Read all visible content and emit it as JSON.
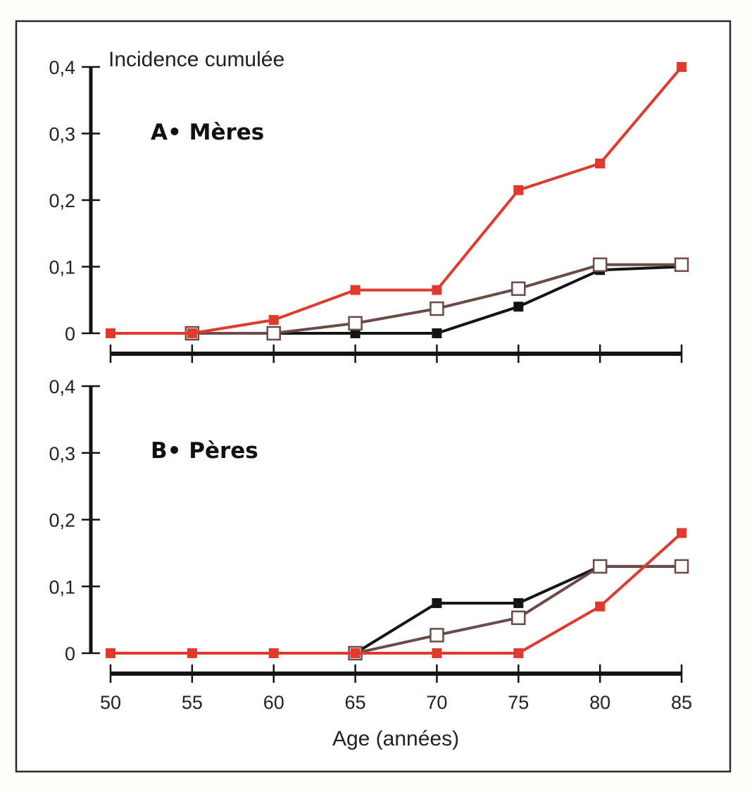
{
  "colors": {
    "series_mothers_red": "#e03a2c",
    "series_black": "#141414",
    "series_open": "#6b4a48",
    "axis": "#141414"
  },
  "chart_data": [
    {
      "type": "line",
      "panel": "A",
      "title": "A•  Mères",
      "ylabel": "Incidence cumulée",
      "xlabel": "",
      "x": [
        50,
        55,
        60,
        65,
        70,
        75,
        80,
        85
      ],
      "xlim": [
        50,
        85
      ],
      "ylim": [
        0,
        0.4
      ],
      "yticks": [
        0,
        0.1,
        0.2,
        0.3,
        0.4
      ],
      "ytick_labels": [
        "0",
        "0,1",
        "0,2",
        "0,3",
        "0,4"
      ],
      "grid": false,
      "legend": "none",
      "series": [
        {
          "name": "black-filled",
          "marker": "filled-square",
          "color": "#141414",
          "values": [
            null,
            0,
            0,
            0,
            0,
            0.04,
            0.095,
            0.1
          ]
        },
        {
          "name": "open",
          "marker": "open-square",
          "color": "#6b4a48",
          "values": [
            null,
            0,
            0,
            0.015,
            0.037,
            0.067,
            0.103,
            0.103
          ]
        },
        {
          "name": "red-filled",
          "marker": "filled-square",
          "color": "#e03a2c",
          "values": [
            0,
            0,
            0.02,
            0.065,
            0.065,
            0.215,
            0.255,
            0.4
          ]
        }
      ]
    },
    {
      "type": "line",
      "panel": "B",
      "title": "B•  Pères",
      "ylabel": "",
      "xlabel": "Age (années)",
      "x": [
        50,
        55,
        60,
        65,
        70,
        75,
        80,
        85
      ],
      "xtick_labels": [
        "50",
        "55",
        "60",
        "65",
        "70",
        "75",
        "80",
        "85"
      ],
      "xlim": [
        50,
        85
      ],
      "ylim": [
        0,
        0.4
      ],
      "yticks": [
        0,
        0.1,
        0.2,
        0.3,
        0.4
      ],
      "ytick_labels": [
        "0",
        "0,1",
        "0,2",
        "0,3",
        "0,4"
      ],
      "grid": false,
      "legend": "none",
      "series": [
        {
          "name": "black-filled",
          "marker": "filled-square",
          "color": "#141414",
          "values": [
            null,
            null,
            null,
            0,
            0.075,
            0.075,
            0.13,
            0.13
          ]
        },
        {
          "name": "open",
          "marker": "open-square",
          "color": "#6b4a48",
          "values": [
            null,
            null,
            null,
            0,
            0.027,
            0.053,
            0.13,
            0.13
          ]
        },
        {
          "name": "red-filled",
          "marker": "filled-square",
          "color": "#e03a2c",
          "values": [
            0,
            0,
            0,
            0,
            0,
            0,
            0.07,
            0.18
          ]
        }
      ]
    }
  ]
}
